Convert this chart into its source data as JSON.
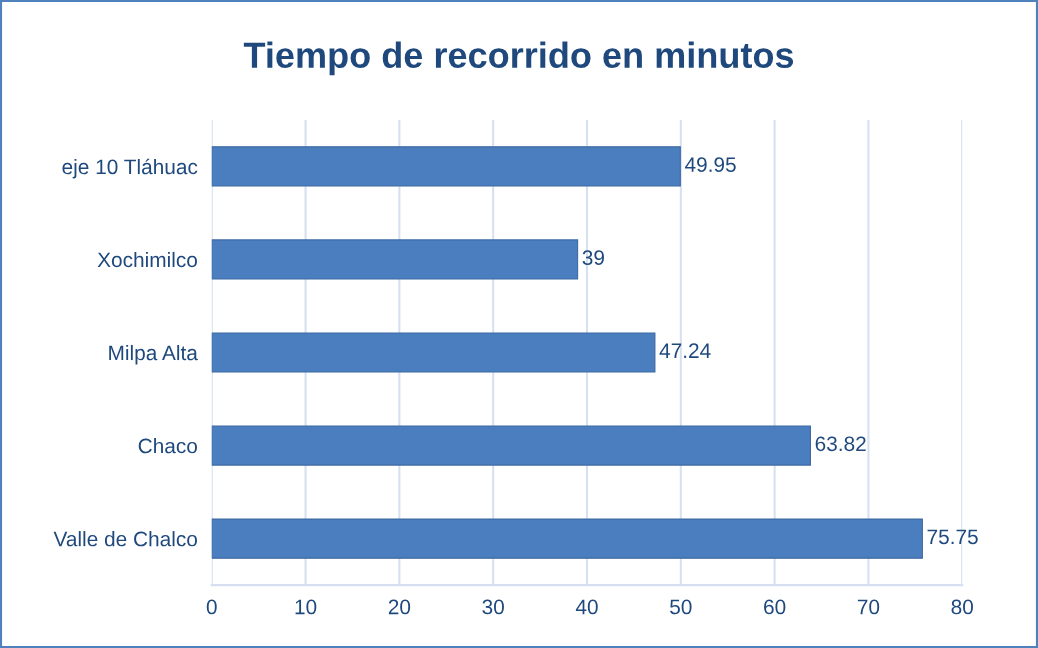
{
  "chart_data": {
    "type": "bar",
    "orientation": "horizontal",
    "title": "Tiempo de recorrido en minutos",
    "categories": [
      "eje 10 Tláhuac",
      "Xochimilco",
      "Milpa Alta",
      "Chaco",
      "Valle de Chalco"
    ],
    "values": [
      49.95,
      39,
      47.24,
      63.82,
      75.75
    ],
    "color": "#4a7ebf",
    "xlim": [
      0,
      80
    ],
    "xticks": [
      0,
      10,
      20,
      30,
      40,
      50,
      60,
      70,
      80
    ],
    "grid": "x",
    "data_labels": true
  }
}
